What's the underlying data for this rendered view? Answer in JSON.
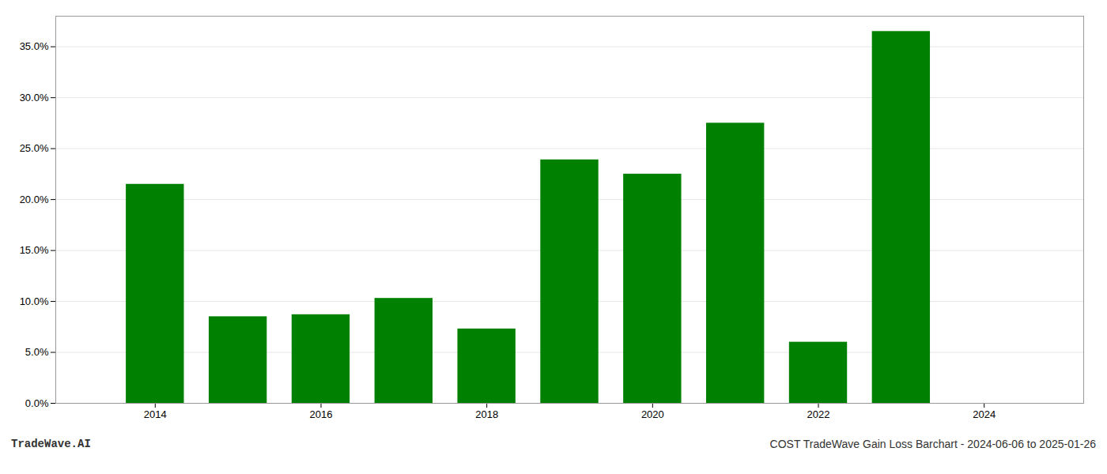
{
  "chart_data": {
    "type": "bar",
    "title": "COST TradeWave Gain Loss Barchart - 2024-06-06 to 2025-01-26",
    "annotations": [
      "TradeWave.AI"
    ],
    "x": [
      2014,
      2015,
      2016,
      2017,
      2018,
      2019,
      2020,
      2021,
      2022,
      2023
    ],
    "values": [
      0.215,
      0.085,
      0.087,
      0.103,
      0.073,
      0.239,
      0.225,
      0.275,
      0.06,
      0.365
    ],
    "color": "#008000",
    "xlim": [
      2012.8,
      2025.2
    ],
    "xticks": [
      2014,
      2016,
      2018,
      2020,
      2022,
      2024
    ],
    "ylim": [
      0.0,
      0.38
    ],
    "yticks": [
      {
        "value": 0.0,
        "label": "0.0%"
      },
      {
        "value": 0.05,
        "label": "5.0%"
      },
      {
        "value": 0.1,
        "label": "10.0%"
      },
      {
        "value": 0.15,
        "label": "15.0%"
      },
      {
        "value": 0.2,
        "label": "20.0%"
      },
      {
        "value": 0.25,
        "label": "25.0%"
      },
      {
        "value": 0.3,
        "label": "30.0%"
      },
      {
        "value": 0.35,
        "label": "35.0%"
      }
    ],
    "grid": true
  }
}
